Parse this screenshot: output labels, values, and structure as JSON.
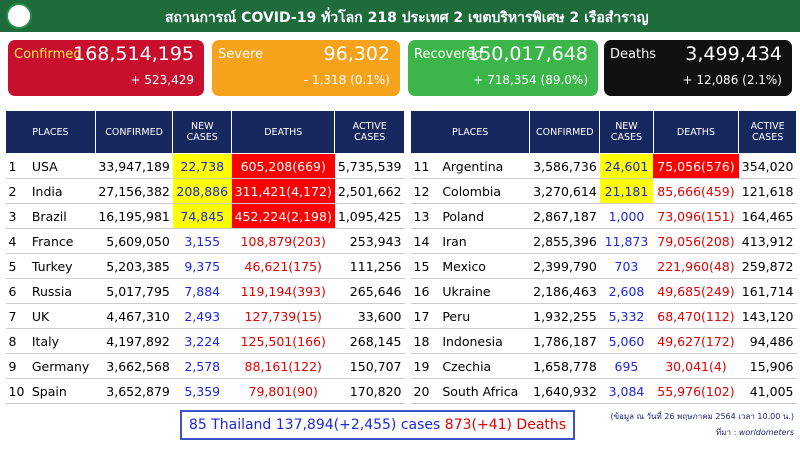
{
  "header": {
    "title": "สถานการณ์ COVID-19 ทั่วโลก 218 ประเทศ 2 เขตบริหารพิเศษ 2 เรือสำราญ"
  },
  "cards": [
    {
      "label": "Confirmed",
      "value": "168,514,195",
      "change": "+ 523,429"
    },
    {
      "label": "Severe",
      "value": "96,302",
      "change": "- 1,318 (0.1%)"
    },
    {
      "label": "Recovered",
      "value": "150,017,648",
      "change": "+ 718,354 (89.0%)"
    },
    {
      "label": "Deaths",
      "value": "3,499,434",
      "change": "+ 12,086 (2.1%)"
    }
  ],
  "columns": [
    "PLACES",
    "CONFIRMED",
    "NEW CASES",
    "DEATHS",
    "ACTIVE CASES"
  ],
  "tables": [
    {
      "rows": [
        [
          "1",
          "USA",
          "33,947,189",
          "22,738",
          "605,208(669)",
          "5,735,539"
        ],
        [
          "2",
          "India",
          "27,156,382",
          "208,886",
          "311,421(4,172)",
          "2,501,662"
        ],
        [
          "3",
          "Brazil",
          "16,195,981",
          "74,845",
          "452,224(2,198)",
          "1,095,425"
        ],
        [
          "4",
          "France",
          "5,609,050",
          "3,155",
          "108,879(203)",
          "253,943"
        ],
        [
          "5",
          "Turkey",
          "5,203,385",
          "9,375",
          "46,621(175)",
          "111,256"
        ],
        [
          "6",
          "Russia",
          "5,017,795",
          "7,884",
          "119,194(393)",
          "265,646"
        ],
        [
          "7",
          "UK",
          "4,467,310",
          "2,493",
          "127,739(15)",
          "33,600"
        ],
        [
          "8",
          "Italy",
          "4,197,892",
          "3,224",
          "125,501(166)",
          "268,145"
        ],
        [
          "9",
          "Germany",
          "3,662,568",
          "2,578",
          "88,161(122)",
          "150,707"
        ],
        [
          "10",
          "Spain",
          "3,652,879",
          "5,359",
          "79,801(90)",
          "170,820"
        ]
      ]
    },
    {
      "rows": [
        [
          "11",
          "Argentina",
          "3,586,736",
          "24,601",
          "75,056(576)",
          "354,020"
        ],
        [
          "12",
          "Colombia",
          "3,270,614",
          "21,181",
          "85,666(459)",
          "121,618"
        ],
        [
          "13",
          "Poland",
          "2,867,187",
          "1,000",
          "73,096(151)",
          "164,465"
        ],
        [
          "14",
          "Iran",
          "2,855,396",
          "11,873",
          "79,056(208)",
          "413,912"
        ],
        [
          "15",
          "Mexico",
          "2,399,790",
          "703",
          "221,960(48)",
          "259,872"
        ],
        [
          "16",
          "Ukraine",
          "2,186,463",
          "2,608",
          "49,685(249)",
          "161,714"
        ],
        [
          "17",
          "Peru",
          "1,932,255",
          "5,332",
          "68,470(112)",
          "143,120"
        ],
        [
          "18",
          "Indonesia",
          "1,786,187",
          "5,060",
          "49,627(172)",
          "94,486"
        ],
        [
          "19",
          "Czechia",
          "1,658,778",
          "695",
          "30,041(4)",
          "15,906"
        ],
        [
          "20",
          "South Africa",
          "1,640,932",
          "3,084",
          "55,976(102)",
          "41,005"
        ]
      ]
    }
  ],
  "footer": {
    "cases": "85 Thailand 137,894(+2,455) cases",
    "deaths": "873(+41) Deaths",
    "note": "(ข้อมูล ณ วันที่ 26 พฤษภาคม 2564 เวลา 10.00 น.)",
    "source_label": "ที่มา :",
    "source": "worldometers"
  }
}
